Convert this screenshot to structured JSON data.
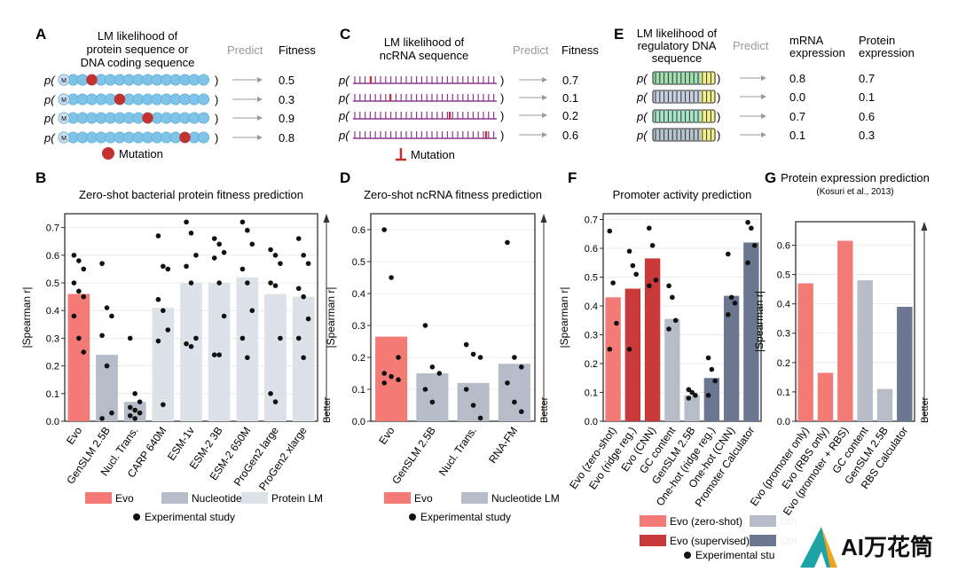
{
  "colors": {
    "evo": "#f47a76",
    "evo_dark": "#c9393a",
    "nuc": "#b6bcc8",
    "prot": "#dde1e8",
    "other_dark": "#6b7690",
    "bead": "#7fc4e8",
    "mut": "#c5312e",
    "stripe": "#8b3a8a"
  },
  "panel_a": {
    "letter": "A",
    "header": [
      "LM likelihood of",
      "protein sequence or",
      "DNA coding sequence"
    ],
    "predict": "Predict",
    "outcome": "Fitness",
    "fitness": [
      "0.5",
      "0.3",
      "0.9",
      "0.8"
    ],
    "legend": "Mutation",
    "p": "p(",
    "close": ")",
    "bead_letter": "M"
  },
  "panel_c": {
    "letter": "C",
    "header": [
      "LM likelihood of",
      "ncRNA sequence"
    ],
    "predict": "Predict",
    "outcome": "Fitness",
    "fitness": [
      "0.7",
      "0.1",
      "0.2",
      "0.6"
    ],
    "legend": "Mutation",
    "p": "p(",
    "close": ")"
  },
  "panel_e": {
    "letter": "E",
    "header": [
      "LM likelihood of",
      "regulatory DNA",
      "sequence"
    ],
    "predict": "Predict",
    "outcome1": [
      "mRNA",
      "expression"
    ],
    "outcome2": [
      "Protein",
      "expression"
    ],
    "mrna": [
      "0.8",
      "0.0",
      "0.7",
      "0.1"
    ],
    "protein": [
      "0.7",
      "0.1",
      "0.6",
      "0.3"
    ],
    "p": "p(",
    "close": ")"
  },
  "chart_data": [
    {
      "panel": "B",
      "type": "bar",
      "title": "Zero-shot bacterial protein fitness prediction",
      "ylabel": "|Spearman r|",
      "better": "Better",
      "ylim": [
        0,
        0.75
      ],
      "yticks": [
        "0.0",
        "0.1",
        "0.2",
        "0.3",
        "0.4",
        "0.5",
        "0.6",
        "0.7"
      ],
      "categories": [
        "Evo",
        "GenSLM 2.5B",
        "Nucl. Trans.",
        "CARP 640M",
        "ESM-1v",
        "ESM-2 3B",
        "ESM-2 650M",
        "ProGen2 large",
        "ProGen2 xlarge"
      ],
      "values": [
        0.46,
        0.24,
        0.07,
        0.41,
        0.5,
        0.5,
        0.52,
        0.46,
        0.45
      ],
      "groups": [
        "evo",
        "nuc",
        "nuc",
        "prot",
        "prot",
        "prot",
        "prot",
        "prot",
        "prot"
      ],
      "points": [
        [
          0.6,
          0.58,
          0.55,
          0.5,
          0.47,
          0.45,
          0.38,
          0.3,
          0.25
        ],
        [
          0.57,
          0.41,
          0.38,
          0.31,
          0.2,
          0.03,
          0.01
        ],
        [
          0.3,
          0.1,
          0.07,
          0.05,
          0.04,
          0.03,
          0.02,
          0.01
        ],
        [
          0.67,
          0.56,
          0.55,
          0.44,
          0.4,
          0.33,
          0.29,
          0.06
        ],
        [
          0.72,
          0.68,
          0.6,
          0.56,
          0.5,
          0.3,
          0.28,
          0.27
        ],
        [
          0.66,
          0.64,
          0.61,
          0.59,
          0.5,
          0.38,
          0.24,
          0.24
        ],
        [
          0.72,
          0.69,
          0.64,
          0.55,
          0.5,
          0.4,
          0.3,
          0.23
        ],
        [
          0.62,
          0.6,
          0.57,
          0.5,
          0.49,
          0.3,
          0.1,
          0.07
        ],
        [
          0.66,
          0.6,
          0.57,
          0.48,
          0.45,
          0.37,
          0.3,
          0.23
        ]
      ],
      "legend": [
        {
          "label": "Evo",
          "color": "#f47a76"
        },
        {
          "label": "Nucleotide LM",
          "color": "#b6bcc8"
        },
        {
          "label": "Protein LM",
          "color": "#dde1e8"
        }
      ],
      "dot_legend": "Experimental study"
    },
    {
      "panel": "D",
      "type": "bar",
      "title": "Zero-shot ncRNA fitness prediction",
      "ylabel": "|Spearman r|",
      "better": "Better",
      "ylim": [
        0,
        0.65
      ],
      "yticks": [
        "0.0",
        "0.1",
        "0.2",
        "0.3",
        "0.4",
        "0.5",
        "0.6"
      ],
      "categories": [
        "Evo",
        "GenSLM 2.5B",
        "Nucl. Trans.",
        "RNA-FM"
      ],
      "values": [
        0.265,
        0.15,
        0.12,
        0.18
      ],
      "groups": [
        "evo",
        "nuc",
        "nuc",
        "nuc"
      ],
      "points": [
        [
          0.6,
          0.45,
          0.2,
          0.15,
          0.14,
          0.13,
          0.12
        ],
        [
          0.3,
          0.17,
          0.15,
          0.1,
          0.06
        ],
        [
          0.24,
          0.21,
          0.2,
          0.1,
          0.05,
          0.01
        ],
        [
          0.56,
          0.2,
          0.17,
          0.12,
          0.06,
          0.03
        ]
      ],
      "legend": [
        {
          "label": "Evo",
          "color": "#f47a76"
        },
        {
          "label": "Nucleotide LM",
          "color": "#b6bcc8"
        }
      ],
      "dot_legend": "Experimental study"
    },
    {
      "panel": "F",
      "type": "bar",
      "title": "Promoter activity prediction",
      "ylabel": "|Spearman r|",
      "better": "",
      "ylim": [
        0,
        0.72
      ],
      "yticks": [
        "0.0",
        "0.1",
        "0.2",
        "0.3",
        "0.4",
        "0.5",
        "0.6",
        "0.7"
      ],
      "categories": [
        "Evo (zero-shot)",
        "Evo (ridge reg.)",
        "Evo (CNN)",
        "GC content",
        "GenSLM 2.5B",
        "One-hot (ridge reg.)",
        "One-hot (CNN)",
        "Promoter Calculator"
      ],
      "values": [
        0.43,
        0.46,
        0.565,
        0.355,
        0.09,
        0.15,
        0.435,
        0.62
      ],
      "groups": [
        "evo",
        "evo_dark",
        "evo_dark",
        "nuc",
        "nuc",
        "other_dark",
        "other_dark",
        "other_dark"
      ],
      "points": [
        [
          0.66,
          0.48,
          0.34,
          0.25
        ],
        [
          0.59,
          0.54,
          0.51,
          0.25
        ],
        [
          0.67,
          0.61,
          0.49,
          0.47
        ],
        [
          0.47,
          0.43,
          0.35,
          0.32
        ],
        [
          0.11,
          0.1,
          0.09,
          0.08
        ],
        [
          0.22,
          0.18,
          0.14,
          0.09
        ],
        [
          0.58,
          0.43,
          0.41,
          0.37
        ],
        [
          0.69,
          0.67,
          0.61,
          0.55
        ]
      ],
      "legend": [
        {
          "label": "Evo (zero-shot)",
          "color": "#f47a76"
        },
        {
          "label": "Oth",
          "color": "#b6bcc8"
        },
        {
          "label": "Evo (supervised)",
          "color": "#c9393a"
        },
        {
          "label": "Oth",
          "color": "#6b7690"
        }
      ],
      "dot_legend": "Experimental stu"
    },
    {
      "panel": "G",
      "type": "bar",
      "title": "Protein expression prediction",
      "subtitle": "(Kosuri et al., 2013)",
      "ylabel": "|Spearman r|",
      "better": "Better",
      "ylim": [
        0,
        0.68
      ],
      "yticks": [
        "0.0",
        "0.1",
        "0.2",
        "0.3",
        "0.4",
        "0.5",
        "0.6"
      ],
      "categories": [
        "Evo (promoter only)",
        "Evo (RBS only)",
        "Evo (promoter + RBS)",
        "GC content",
        "GenSLM 2.5B",
        "RBS Calculator"
      ],
      "values": [
        0.47,
        0.165,
        0.615,
        0.48,
        0.11,
        0.39
      ],
      "groups": [
        "evo",
        "evo",
        "evo",
        "nuc",
        "nuc",
        "other_dark"
      ],
      "points": [
        [],
        [],
        [],
        [],
        [],
        []
      ]
    }
  ],
  "watermark": "AI万花筒"
}
